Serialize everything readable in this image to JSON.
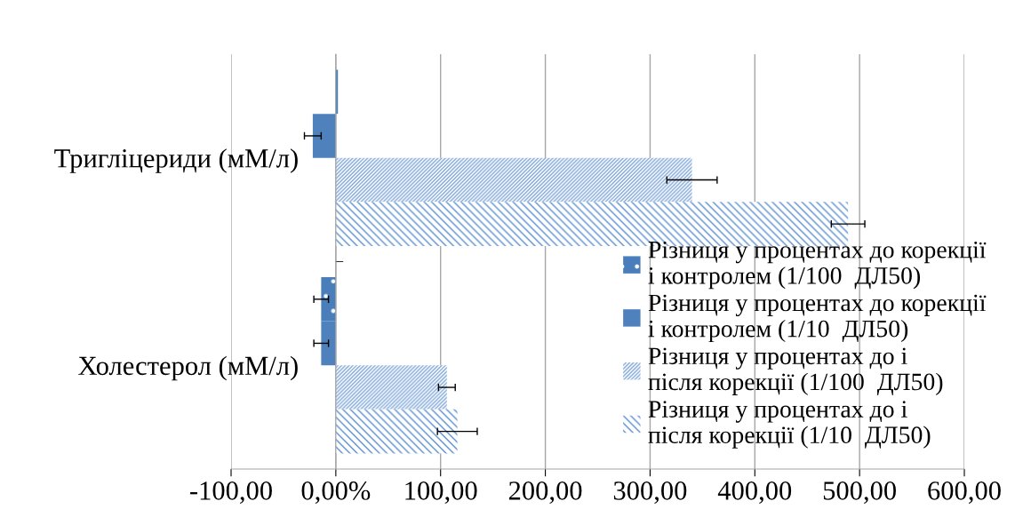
{
  "chart_data": {
    "type": "bar",
    "orientation": "horizontal",
    "categories": [
      "Тригліцериди (мМ/л)",
      "Холестерол (мМ/л)"
    ],
    "series": [
      {
        "name": "Різниця у процентах до корекції і контролем (1/100  ДЛ50)",
        "color": "#4a7ebb",
        "values": [
          2,
          -14
        ],
        "errors": [
          null,
          7
        ]
      },
      {
        "name": "Різниця у процентах до корекції і контролем (1/10  ДЛ50)",
        "color": "#4f81bd",
        "values": [
          -22,
          -14
        ],
        "errors": [
          8,
          7
        ]
      },
      {
        "name": "Різниця у процентах до і  після корекції (1/100  ДЛ50)",
        "color": "#7ea6d8",
        "values": [
          340,
          106
        ],
        "errors": [
          24,
          8
        ]
      },
      {
        "name": "Різниця у процентах до і  після корекції (1/10  ДЛ50)",
        "color": "#5b8fd0",
        "values": [
          489,
          116
        ],
        "errors": [
          16,
          19
        ]
      }
    ],
    "xlim": [
      -100,
      600
    ],
    "xticks": [
      {
        "value": -100,
        "label": "-100,00"
      },
      {
        "value": 0,
        "label": "0,00%"
      },
      {
        "value": 100,
        "label": "100,00"
      },
      {
        "value": 200,
        "label": "200,00"
      },
      {
        "value": 300,
        "label": "300,00"
      },
      {
        "value": 400,
        "label": "400,00"
      },
      {
        "value": 500,
        "label": "500,00"
      },
      {
        "value": 600,
        "label": "600,00"
      }
    ],
    "grid": "x",
    "legend": "right"
  }
}
